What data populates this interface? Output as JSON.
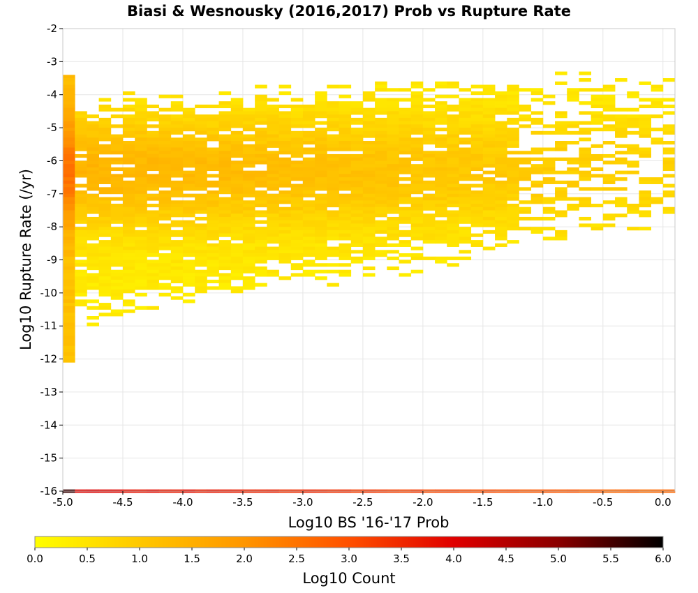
{
  "chart_data": {
    "type": "heatmap",
    "title": "Biasi & Wesnousky (2016,2017) Prob vs Rupture Rate",
    "xlabel": "Log10 BS '16-'17 Prob",
    "ylabel": "Log10 Rupture Rate (/yr)",
    "xlim": [
      -5.0,
      0.1
    ],
    "ylim": [
      -16,
      -2
    ],
    "x_ticks": [
      "-5.0",
      "-4.5",
      "-4.0",
      "-3.5",
      "-3.0",
      "-2.5",
      "-2.0",
      "-1.5",
      "-1.0",
      "-0.5",
      "0.0"
    ],
    "y_ticks": [
      "-2",
      "-3",
      "-4",
      "-5",
      "-6",
      "-7",
      "-8",
      "-9",
      "-10",
      "-11",
      "-12",
      "-13",
      "-14",
      "-15",
      "-16"
    ],
    "grid": true,
    "bin_size": 0.1,
    "colorbar": {
      "label": "Log10 Count",
      "range": [
        0.0,
        6.0
      ],
      "ticks": [
        "0.0",
        "0.5",
        "1.0",
        "1.5",
        "2.0",
        "2.5",
        "3.0",
        "3.5",
        "4.0",
        "4.5",
        "5.0",
        "5.5",
        "6.0"
      ],
      "colormap": [
        "#ffff00",
        "#ffc800",
        "#ff9600",
        "#ff5000",
        "#e00000",
        "#8a0000",
        "#000000"
      ]
    },
    "density_summary": {
      "main_cluster_x_range": [
        -5.0,
        -0.3
      ],
      "main_cluster_y_range": [
        -12.1,
        -3.4
      ],
      "peak_y_center": -6.3,
      "bottom_row_y": -16.0,
      "bottom_row_log10_count_range": [
        2.5,
        5.6
      ],
      "left_column_x": -4.95,
      "left_column_log10_count_range": [
        1.0,
        2.5
      ]
    }
  }
}
